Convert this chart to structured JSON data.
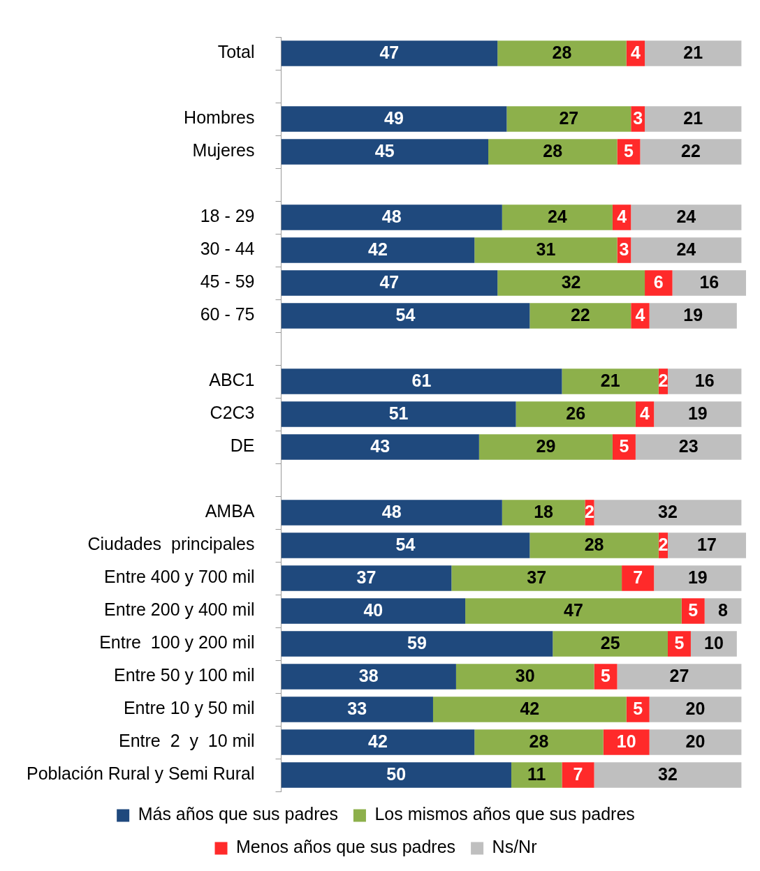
{
  "chart_data": {
    "type": "bar",
    "orientation": "horizontal",
    "stacked": true,
    "data_labels": true,
    "legend": "bottom",
    "grid": false,
    "tick_labels": "y",
    "categories": [
      "Total",
      null,
      "Hombres",
      "Mujeres",
      null,
      "18 - 29",
      "30 - 44",
      "45 - 59",
      "60 - 75",
      null,
      "ABC1",
      "C2C3",
      "DE",
      null,
      "AMBA",
      "Ciudades  principales",
      "Entre 400 y 700 mil",
      "Entre 200 y 400 mil",
      "Entre  100 y 200 mil",
      "Entre 50 y 100 mil",
      "Entre 10 y 50 mil",
      "Entre  2  y  10 mil",
      "Población Rural y Semi Rural"
    ],
    "series": [
      {
        "name": "Más años que sus padres",
        "color": "#1f497d",
        "values": [
          47,
          null,
          49,
          45,
          null,
          48,
          42,
          47,
          54,
          null,
          61,
          51,
          43,
          null,
          48,
          54,
          37,
          40,
          59,
          38,
          33,
          42,
          50
        ]
      },
      {
        "name": "Los mismos años que sus padres",
        "color": "#8db04b",
        "values": [
          28,
          null,
          27,
          28,
          null,
          24,
          31,
          32,
          22,
          null,
          21,
          26,
          29,
          null,
          18,
          28,
          37,
          47,
          25,
          30,
          42,
          28,
          11
        ]
      },
      {
        "name": "Menos años que sus padres",
        "color": "#ff2a2a",
        "values": [
          4,
          null,
          3,
          5,
          null,
          4,
          3,
          6,
          4,
          null,
          2,
          4,
          5,
          null,
          2,
          2,
          7,
          5,
          5,
          5,
          5,
          10,
          7
        ]
      },
      {
        "name": "Ns/Nr",
        "color": "#bfbfbf",
        "values": [
          21,
          null,
          21,
          22,
          null,
          24,
          24,
          16,
          19,
          null,
          16,
          19,
          23,
          null,
          32,
          17,
          19,
          8,
          10,
          27,
          20,
          20,
          32
        ]
      }
    ]
  }
}
